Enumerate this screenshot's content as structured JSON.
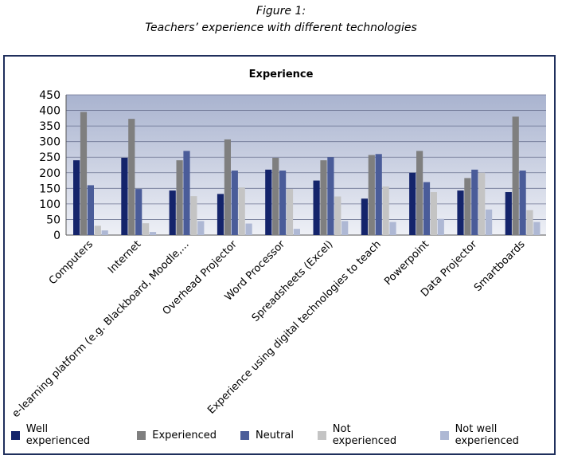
{
  "figure_label": "Figure 1:",
  "figure_caption": "Teachers’ experience with different technologies",
  "chart_data": {
    "type": "bar",
    "title": "Experience",
    "xlabel": "",
    "ylabel": "",
    "ylim": [
      0,
      450
    ],
    "yticks": [
      0,
      50,
      100,
      150,
      200,
      250,
      300,
      350,
      400,
      450
    ],
    "grid": true,
    "legend_position": "bottom",
    "categories": [
      "Computers",
      "Internet",
      "e-learning platform (e.g. Blackboard, Moodle,...",
      "Overhead Projector",
      "Word Processor",
      "Spreadsheets (Excel)",
      "Experience using digital technologies to teach",
      "Powerpoint",
      "Data Projector",
      "Smartboards"
    ],
    "series": [
      {
        "name": "Well experienced",
        "color": "#14246b",
        "values": [
          240,
          248,
          143,
          132,
          210,
          175,
          117,
          200,
          143,
          138
        ]
      },
      {
        "name": "Experienced",
        "color": "#7f7f7f",
        "values": [
          395,
          373,
          240,
          307,
          248,
          240,
          257,
          270,
          183,
          380
        ]
      },
      {
        "name": "Neutral",
        "color": "#4a5c99",
        "values": [
          160,
          148,
          270,
          207,
          207,
          250,
          260,
          170,
          210,
          207
        ]
      },
      {
        "name": "Not experienced",
        "color": "#c4c4c4",
        "values": [
          30,
          38,
          125,
          153,
          148,
          124,
          156,
          138,
          200,
          80
        ]
      },
      {
        "name": "Not well experienced",
        "color": "#aeb8d4",
        "values": [
          15,
          10,
          45,
          37,
          20,
          45,
          42,
          52,
          82,
          42
        ]
      }
    ]
  }
}
